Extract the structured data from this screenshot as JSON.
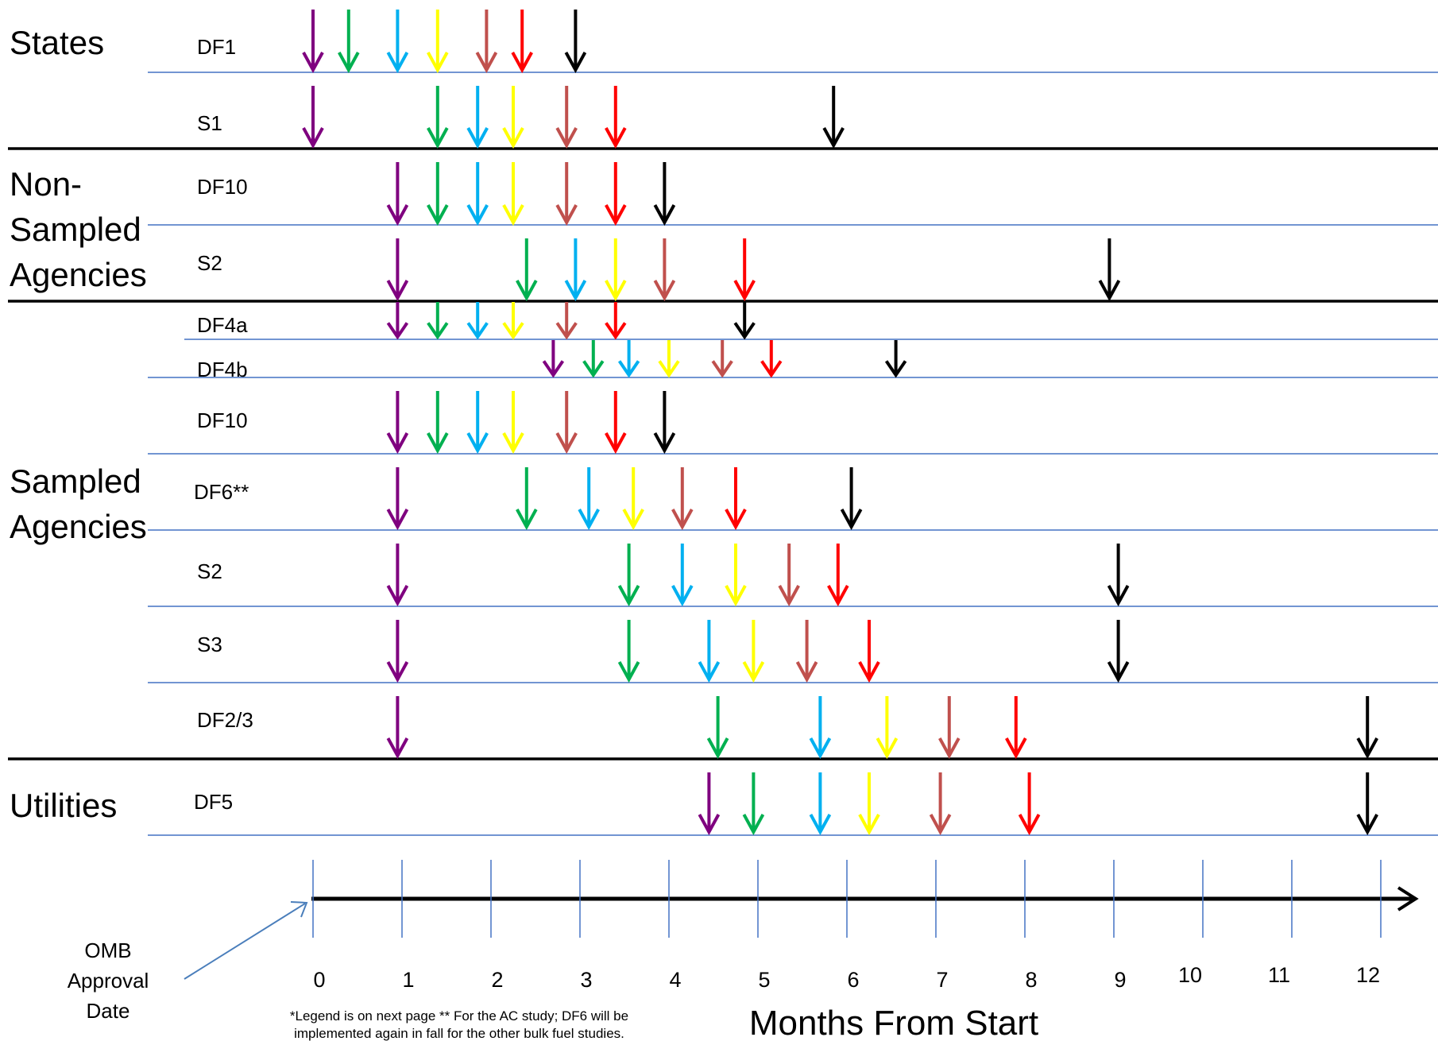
{
  "colors": {
    "purple": "#7f007f",
    "green": "#00b050",
    "blue": "#00b0f0",
    "yellow": "#ffff00",
    "rose": "#c0504d",
    "red": "#ff0000",
    "black": "#000000",
    "gridline": "#4472c4"
  },
  "color_order": [
    "purple",
    "green",
    "blue",
    "yellow",
    "rose",
    "red",
    "black"
  ],
  "groups": [
    {
      "lines": [
        "States"
      ]
    },
    {
      "lines": [
        "Non-",
        "Sampled",
        "Agencies"
      ]
    },
    {
      "lines": [
        "Sampled",
        "Agencies"
      ]
    },
    {
      "lines": [
        "Utilities"
      ]
    }
  ],
  "rows": [
    {
      "label": "DF1",
      "months": [
        0,
        0.4,
        0.95,
        1.4,
        1.95,
        2.35,
        2.95
      ]
    },
    {
      "label": "S1",
      "months": [
        0,
        1.4,
        1.85,
        2.25,
        2.85,
        3.4,
        5.85
      ]
    },
    {
      "label": "DF10",
      "months": [
        0.95,
        1.4,
        1.85,
        2.25,
        2.85,
        3.4,
        3.95
      ]
    },
    {
      "label": "S2",
      "months": [
        0.95,
        2.4,
        2.95,
        3.4,
        3.95,
        4.85,
        8.95
      ]
    },
    {
      "label": "DF4a",
      "months": [
        0.95,
        1.4,
        1.85,
        2.25,
        2.85,
        3.4,
        4.85
      ]
    },
    {
      "label": "DF4b",
      "months": [
        2.7,
        3.15,
        3.55,
        4,
        4.6,
        5.15,
        6.55
      ]
    },
    {
      "label": "DF10",
      "months": [
        0.95,
        1.4,
        1.85,
        2.25,
        2.85,
        3.4,
        3.95
      ]
    },
    {
      "label": "DF6**",
      "months": [
        0.95,
        2.4,
        3.1,
        3.6,
        4.15,
        4.75,
        6.05
      ]
    },
    {
      "label": "S2",
      "months": [
        0.95,
        3.55,
        4.15,
        4.75,
        5.35,
        5.9,
        9.05
      ]
    },
    {
      "label": "S3",
      "months": [
        0.95,
        3.55,
        4.45,
        4.95,
        5.55,
        6.25,
        9.05
      ]
    },
    {
      "label": "DF2/3",
      "months": [
        0.95,
        4.55,
        5.7,
        6.45,
        7.15,
        7.9,
        11.85
      ]
    },
    {
      "label": "DF5",
      "months": [
        4.45,
        4.95,
        5.7,
        6.25,
        7.05,
        8.05,
        11.85
      ]
    }
  ],
  "axis": {
    "title": "Months From Start",
    "ticks": [
      "0",
      "1",
      "2",
      "3",
      "4",
      "5",
      "6",
      "7",
      "8",
      "9",
      "10",
      "11",
      "12"
    ]
  },
  "annotation": {
    "lines": [
      "OMB",
      "Approval",
      "Date"
    ]
  },
  "footnote": {
    "lines": [
      "*Legend is on next page ** For the AC study; DF6 will be",
      "implemented again in fall for the other bulk fuel studies."
    ]
  }
}
